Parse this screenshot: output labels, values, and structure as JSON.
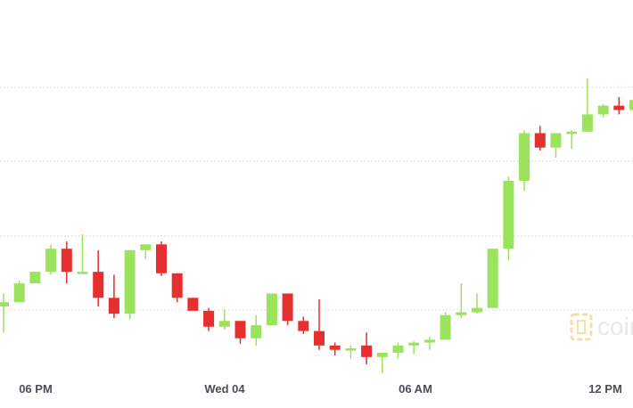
{
  "chart_data": {
    "type": "candlestick",
    "title": "",
    "xlabel": "",
    "ylabel": "",
    "grid": true,
    "y_axis_visible": false,
    "bullish_color": "#9be35c",
    "bearish_color": "#e5302f",
    "x_tick_labels": [
      "06 PM",
      "Wed 04",
      "06 AM",
      "12 PM"
    ],
    "x_tick_index": [
      2,
      14,
      26,
      38
    ],
    "candles": [
      {
        "open": 3.0,
        "high": 3.9,
        "low": 1.2,
        "close": 3.3
      },
      {
        "open": 3.3,
        "high": 4.8,
        "low": 3.3,
        "close": 4.6
      },
      {
        "open": 4.6,
        "high": 5.4,
        "low": 4.6,
        "close": 5.4
      },
      {
        "open": 5.4,
        "high": 7.3,
        "low": 5.2,
        "close": 7.0
      },
      {
        "open": 7.0,
        "high": 7.5,
        "low": 4.6,
        "close": 5.4
      },
      {
        "open": 5.4,
        "high": 8.0,
        "low": 5.4,
        "close": 5.4
      },
      {
        "open": 5.4,
        "high": 6.9,
        "low": 3.0,
        "close": 3.6
      },
      {
        "open": 3.6,
        "high": 5.2,
        "low": 2.2,
        "close": 2.5
      },
      {
        "open": 2.5,
        "high": 6.9,
        "low": 2.1,
        "close": 6.9
      },
      {
        "open": 6.9,
        "high": 7.3,
        "low": 6.3,
        "close": 7.3
      },
      {
        "open": 7.3,
        "high": 7.5,
        "low": 5.1,
        "close": 5.3
      },
      {
        "open": 5.3,
        "high": 5.3,
        "low": 3.3,
        "close": 3.6
      },
      {
        "open": 3.6,
        "high": 3.6,
        "low": 2.9,
        "close": 2.7
      },
      {
        "open": 2.7,
        "high": 2.9,
        "low": 1.3,
        "close": 1.6
      },
      {
        "open": 1.6,
        "high": 2.8,
        "low": 1.4,
        "close": 2.0
      },
      {
        "open": 2.0,
        "high": 2.0,
        "low": 0.4,
        "close": 0.8
      },
      {
        "open": 0.8,
        "high": 2.4,
        "low": 0.3,
        "close": 1.7
      },
      {
        "open": 1.7,
        "high": 3.9,
        "low": 1.7,
        "close": 3.9
      },
      {
        "open": 3.9,
        "high": 3.9,
        "low": 1.7,
        "close": 2.0
      },
      {
        "open": 2.0,
        "high": 2.3,
        "low": 1.1,
        "close": 1.3
      },
      {
        "open": 1.3,
        "high": 3.5,
        "low": 0.0,
        "close": 0.3
      },
      {
        "open": 0.3,
        "high": 0.5,
        "low": -0.4,
        "close": 0.0
      },
      {
        "open": 0.0,
        "high": 0.3,
        "low": -0.6,
        "close": 0.1
      },
      {
        "open": 0.3,
        "high": 1.2,
        "low": -1.0,
        "close": -0.5
      },
      {
        "open": -0.5,
        "high": -0.2,
        "low": -1.6,
        "close": -0.2
      },
      {
        "open": -0.2,
        "high": 0.5,
        "low": -0.6,
        "close": 0.3
      },
      {
        "open": 0.3,
        "high": 0.6,
        "low": -0.3,
        "close": 0.5
      },
      {
        "open": 0.5,
        "high": 0.9,
        "low": 0.0,
        "close": 0.7
      },
      {
        "open": 0.7,
        "high": 2.6,
        "low": 0.7,
        "close": 2.4
      },
      {
        "open": 2.4,
        "high": 4.6,
        "low": 2.2,
        "close": 2.6
      },
      {
        "open": 2.6,
        "high": 3.9,
        "low": 2.5,
        "close": 2.9
      },
      {
        "open": 2.9,
        "high": 7.0,
        "low": 2.9,
        "close": 7.0
      },
      {
        "open": 7.0,
        "high": 12.0,
        "low": 6.2,
        "close": 11.7
      },
      {
        "open": 11.7,
        "high": 15.2,
        "low": 11.0,
        "close": 15.0
      },
      {
        "open": 15.0,
        "high": 15.5,
        "low": 13.8,
        "close": 14.0
      },
      {
        "open": 14.0,
        "high": 15.0,
        "low": 13.3,
        "close": 15.0
      },
      {
        "open": 15.0,
        "high": 15.2,
        "low": 13.9,
        "close": 15.1
      },
      {
        "open": 15.1,
        "high": 18.8,
        "low": 15.1,
        "close": 16.3
      },
      {
        "open": 16.3,
        "high": 17.0,
        "low": 16.1,
        "close": 16.9
      },
      {
        "open": 16.9,
        "high": 17.5,
        "low": 16.3,
        "close": 16.6
      },
      {
        "open": 16.6,
        "high": 19.1,
        "low": 16.5,
        "close": 17.3
      },
      {
        "open": 17.3,
        "high": 18.9,
        "low": 17.0,
        "close": 17.8
      }
    ]
  },
  "watermark": {
    "text": "coin"
  }
}
